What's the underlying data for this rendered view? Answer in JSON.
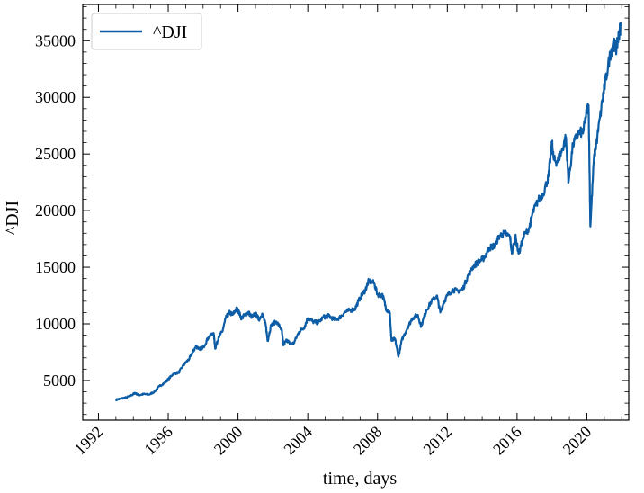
{
  "chart_data": {
    "type": "line",
    "title": "",
    "xlabel": "time, days",
    "ylabel": "^DJI",
    "xlim": [
      1991.1,
      2022.4
    ],
    "ylim": [
      1500,
      38200
    ],
    "x_ticks": [
      1992,
      1996,
      2000,
      2004,
      2008,
      2012,
      2016,
      2020
    ],
    "x_tick_labels": [
      "1992",
      "1996",
      "2000",
      "2004",
      "2008",
      "2012",
      "2016",
      "2020"
    ],
    "y_ticks": [
      5000,
      10000,
      15000,
      20000,
      25000,
      30000,
      35000
    ],
    "y_tick_labels": [
      "5000",
      "10000",
      "15000",
      "20000",
      "25000",
      "30000",
      "35000"
    ],
    "grid": false,
    "legend": {
      "position": "top-left"
    },
    "series": [
      {
        "name": "^DJI",
        "color": "#0c5da5",
        "x": [
          1993.0,
          1993.3,
          1993.6,
          1993.9,
          1994.1,
          1994.3,
          1994.6,
          1994.9,
          1995.2,
          1995.5,
          1995.8,
          1996.0,
          1996.3,
          1996.6,
          1996.9,
          1997.2,
          1997.4,
          1997.6,
          1997.8,
          1998.0,
          1998.3,
          1998.6,
          1998.7,
          1998.9,
          1999.1,
          1999.3,
          1999.5,
          1999.7,
          1999.9,
          2000.0,
          2000.2,
          2000.4,
          2000.6,
          2000.8,
          2001.0,
          2001.2,
          2001.4,
          2001.6,
          2001.7,
          2001.9,
          2002.2,
          2002.5,
          2002.6,
          2002.8,
          2003.0,
          2003.2,
          2003.5,
          2003.8,
          2004.0,
          2004.3,
          2004.6,
          2004.9,
          2005.2,
          2005.5,
          2005.8,
          2006.1,
          2006.4,
          2006.7,
          2007.0,
          2007.3,
          2007.5,
          2007.8,
          2008.0,
          2008.3,
          2008.5,
          2008.7,
          2008.8,
          2009.0,
          2009.2,
          2009.4,
          2009.7,
          2010.0,
          2010.3,
          2010.5,
          2010.8,
          2011.1,
          2011.4,
          2011.6,
          2011.8,
          2012.0,
          2012.3,
          2012.6,
          2012.9,
          2013.2,
          2013.5,
          2013.8,
          2014.1,
          2014.4,
          2014.7,
          2015.0,
          2015.3,
          2015.6,
          2015.7,
          2015.9,
          2016.1,
          2016.4,
          2016.7,
          2016.9,
          2017.2,
          2017.5,
          2017.8,
          2018.0,
          2018.1,
          2018.3,
          2018.6,
          2018.8,
          2018.95,
          2019.2,
          2019.5,
          2019.8,
          2020.0,
          2020.1,
          2020.2,
          2020.4,
          2020.6,
          2020.9,
          2021.0,
          2021.3,
          2021.5,
          2021.7,
          2021.85,
          2021.95
        ],
        "values": [
          3300,
          3400,
          3500,
          3700,
          3900,
          3700,
          3800,
          3750,
          4000,
          4500,
          4800,
          5100,
          5600,
          5700,
          6400,
          6900,
          7500,
          8000,
          7800,
          7900,
          8800,
          9200,
          7800,
          8900,
          9300,
          10500,
          11000,
          10800,
          11300,
          11200,
          10500,
          10800,
          11000,
          10600,
          10900,
          10400,
          10900,
          9800,
          8500,
          9900,
          10200,
          9500,
          8100,
          8600,
          8200,
          8300,
          9300,
          9700,
          10500,
          10200,
          10100,
          10600,
          10700,
          10400,
          10500,
          11000,
          11200,
          11300,
          12300,
          13000,
          13800,
          13600,
          12600,
          12500,
          11300,
          11000,
          8500,
          8700,
          7100,
          8600,
          9600,
          10500,
          10800,
          9800,
          11200,
          12000,
          12500,
          11000,
          11900,
          12500,
          13000,
          12900,
          13100,
          14300,
          15100,
          15500,
          15800,
          16700,
          16900,
          17800,
          18000,
          17700,
          16200,
          17700,
          16200,
          17800,
          18500,
          19800,
          20900,
          21500,
          23000,
          26000,
          24500,
          24300,
          25400,
          26500,
          22500,
          25800,
          26800,
          27000,
          28800,
          29300,
          18600,
          24500,
          26500,
          29800,
          30800,
          33500,
          34800,
          34300,
          35700,
          36300
        ]
      }
    ]
  }
}
